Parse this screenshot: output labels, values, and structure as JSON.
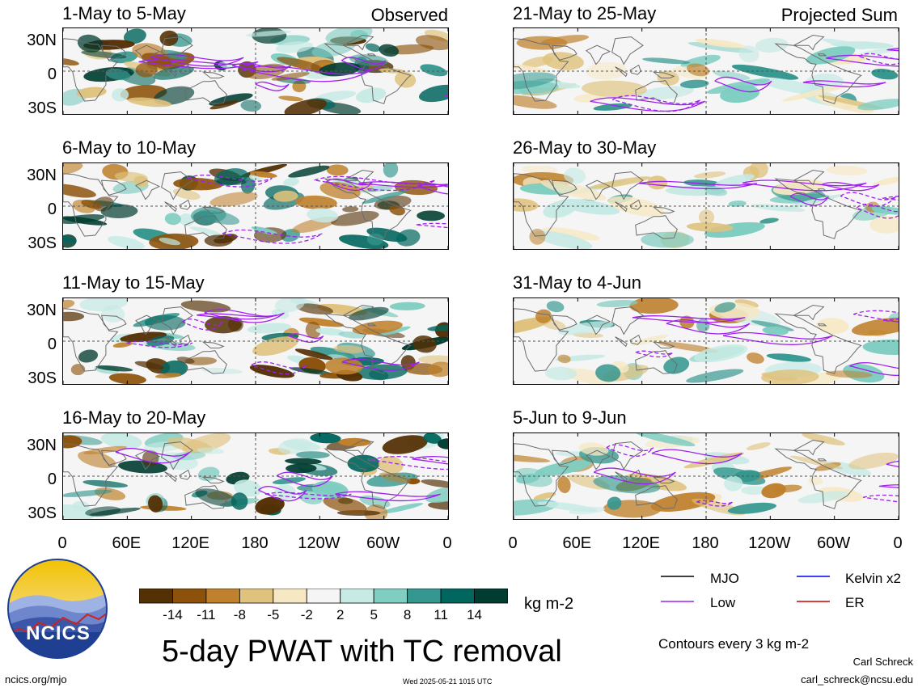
{
  "title": "5-day PWAT with TC removal",
  "observed_label": "Observed",
  "projected_label": "Projected Sum",
  "units": "kg m-2",
  "contour_note": "Contours every 3 kg m-2",
  "author": "Carl Schreck",
  "email": "carl_schreck@ncsu.edu",
  "site": "ncics.org/mjo",
  "timestamp": "Wed 2025-05-21 1015 UTC",
  "logo_text": "NCICS",
  "legend": [
    {
      "name": "MJO",
      "color": "#000000"
    },
    {
      "name": "Kelvin x2",
      "color": "#0000ee"
    },
    {
      "name": "Low",
      "color": "#a020f0"
    },
    {
      "name": "ER",
      "color": "#cc0000"
    }
  ],
  "chart_data": {
    "type": "heatmap",
    "panels_left": [
      "1-May to 5-May",
      "6-May to 10-May",
      "11-May to 15-May",
      "16-May to 20-May"
    ],
    "panels_right": [
      "21-May to 25-May",
      "26-May to 30-May",
      "31-May to 4-Jun",
      "5-Jun to 9-Jun"
    ],
    "y_ticks": [
      "30N",
      "0",
      "30S"
    ],
    "x_ticks": [
      "0",
      "60E",
      "120E",
      "180",
      "120W",
      "60W",
      "0"
    ],
    "colorbar_ticks": [
      "-14",
      "-11",
      "-8",
      "-5",
      "-2",
      "2",
      "5",
      "8",
      "11",
      "14"
    ],
    "colorbar_colors": [
      "#543005",
      "#8c510a",
      "#bf812d",
      "#dfc27d",
      "#f6e8c3",
      "#f5f5f5",
      "#c7eae5",
      "#80cdc1",
      "#35978f",
      "#01665e",
      "#003c30"
    ]
  }
}
